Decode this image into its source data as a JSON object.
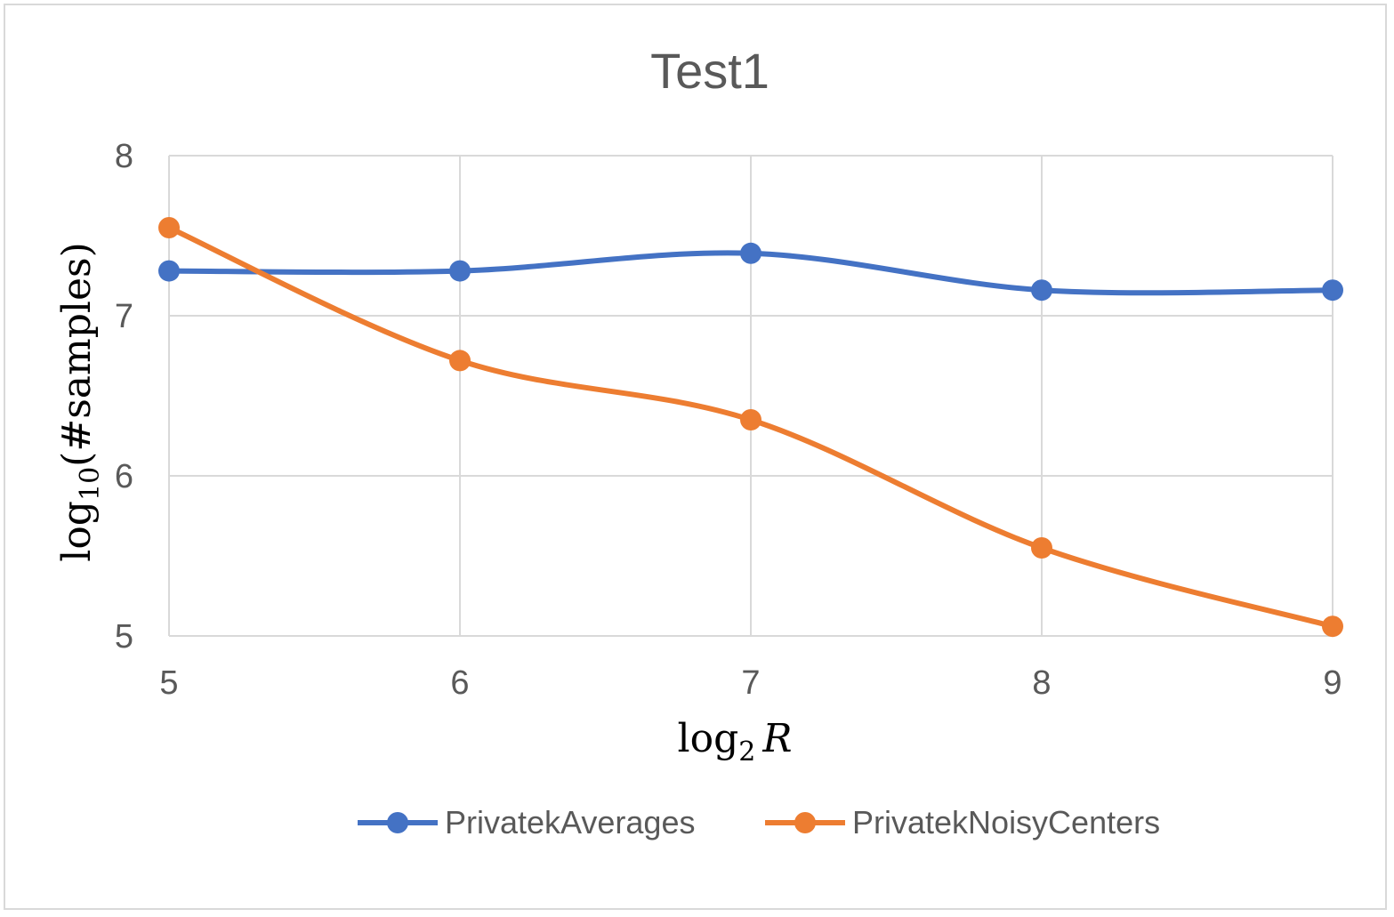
{
  "chart_data": {
    "type": "line",
    "title": "Test1",
    "xlabel": "log",
    "xlabel_sub": "2",
    "xlabel_var": "R",
    "ylabel": "log",
    "ylabel_sub": "10",
    "ylabel_rest": "(#samples)",
    "x": [
      5,
      6,
      7,
      8,
      9
    ],
    "xlim": [
      5,
      9
    ],
    "ylim": [
      5,
      8
    ],
    "yticks": [
      5,
      6,
      7,
      8
    ],
    "grid": true,
    "legend_position": "bottom",
    "series": [
      {
        "name": "PrivatekAverages",
        "color": "#4472c4",
        "values": [
          7.28,
          7.28,
          7.39,
          7.16,
          7.16
        ]
      },
      {
        "name": "PrivatekNoisyCenters",
        "color": "#ed7d31",
        "values": [
          7.55,
          6.72,
          6.35,
          5.55,
          5.06
        ]
      }
    ]
  }
}
